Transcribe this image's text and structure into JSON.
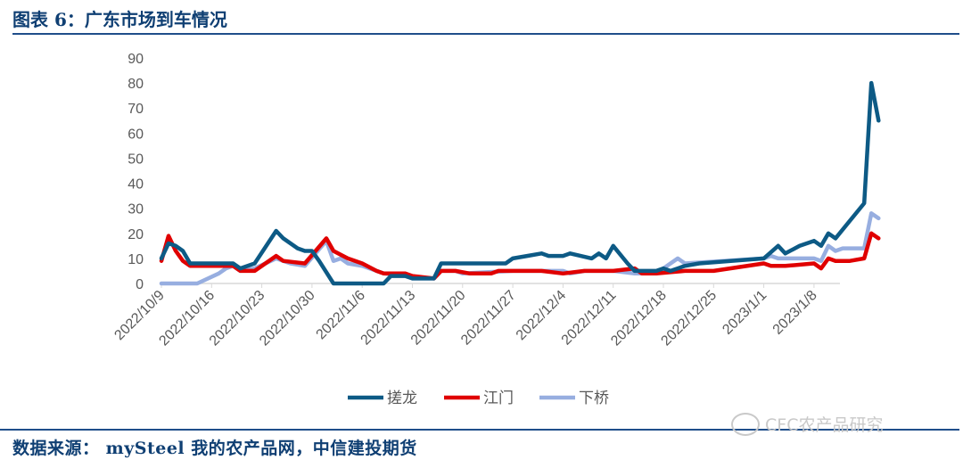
{
  "header": {
    "title": "图表 6：广东市场到车情况"
  },
  "footer": {
    "source": "数据来源：  mySteel 我的农产品网，中信建投期货",
    "watermark": "CFC农产品研究"
  },
  "colors": {
    "cuolong": "#0d5a85",
    "jiangmen": "#e00000",
    "xiaqiao": "#97aee0",
    "axis": "#d9d9d9",
    "text": "#595959"
  },
  "chart_data": {
    "type": "line",
    "title": "",
    "xlabel": "",
    "ylabel": "",
    "ylim": [
      0,
      90
    ],
    "yticks": [
      0,
      10,
      20,
      30,
      40,
      50,
      60,
      70,
      80,
      90
    ],
    "x_range": [
      "2022-10-09",
      "2023-01-12"
    ],
    "xticks": [
      "2022/10/9",
      "2022/10/16",
      "2022/10/23",
      "2022/10/30",
      "2022/11/6",
      "2022/11/13",
      "2022/11/20",
      "2022/11/27",
      "2022/12/4",
      "2022/12/11",
      "2022/12/18",
      "2022/12/25",
      "2023/1/1",
      "2023/1/8"
    ],
    "grid": false,
    "legend_position": "bottom",
    "series": [
      {
        "name": "搓龙",
        "color_key": "cuolong",
        "points": [
          [
            "2022-10-09",
            10
          ],
          [
            "2022-10-10",
            16
          ],
          [
            "2022-10-11",
            15
          ],
          [
            "2022-10-12",
            13
          ],
          [
            "2022-10-13",
            8
          ],
          [
            "2022-10-19",
            8
          ],
          [
            "2022-10-20",
            6
          ],
          [
            "2022-10-22",
            8
          ],
          [
            "2022-10-25",
            21
          ],
          [
            "2022-10-26",
            18
          ],
          [
            "2022-10-28",
            14
          ],
          [
            "2022-10-29",
            13
          ],
          [
            "2022-10-30",
            13
          ],
          [
            "2022-10-31",
            9
          ],
          [
            "2022-11-02",
            0
          ],
          [
            "2022-11-09",
            0
          ],
          [
            "2022-11-10",
            3
          ],
          [
            "2022-11-12",
            3
          ],
          [
            "2022-11-13",
            2
          ],
          [
            "2022-11-16",
            2
          ],
          [
            "2022-11-17",
            8
          ],
          [
            "2022-11-26",
            8
          ],
          [
            "2022-11-27",
            10
          ],
          [
            "2022-11-29",
            11
          ],
          [
            "2022-12-01",
            12
          ],
          [
            "2022-12-02",
            11
          ],
          [
            "2022-12-04",
            11
          ],
          [
            "2022-12-05",
            12
          ],
          [
            "2022-12-08",
            10
          ],
          [
            "2022-12-09",
            12
          ],
          [
            "2022-12-10",
            10
          ],
          [
            "2022-12-11",
            15
          ],
          [
            "2022-12-13",
            8
          ],
          [
            "2022-12-14",
            5
          ],
          [
            "2022-12-17",
            5
          ],
          [
            "2022-12-18",
            6
          ],
          [
            "2022-12-19",
            5
          ],
          [
            "2022-12-21",
            7
          ],
          [
            "2022-12-23",
            8
          ],
          [
            "2023-01-01",
            10
          ],
          [
            "2023-01-03",
            15
          ],
          [
            "2023-01-04",
            12
          ],
          [
            "2023-01-06",
            15
          ],
          [
            "2023-01-08",
            17
          ],
          [
            "2023-01-09",
            15
          ],
          [
            "2023-01-10",
            20
          ],
          [
            "2023-01-11",
            18
          ],
          [
            "2023-01-15",
            32
          ],
          [
            "2023-01-16",
            80
          ],
          [
            "2023-01-17",
            65
          ]
        ]
      },
      {
        "name": "江门",
        "color_key": "jiangmen",
        "points": [
          [
            "2022-10-09",
            9
          ],
          [
            "2022-10-10",
            19
          ],
          [
            "2022-10-11",
            13
          ],
          [
            "2022-10-12",
            9
          ],
          [
            "2022-10-13",
            7
          ],
          [
            "2022-10-19",
            7
          ],
          [
            "2022-10-20",
            5
          ],
          [
            "2022-10-22",
            5
          ],
          [
            "2022-10-25",
            11
          ],
          [
            "2022-10-26",
            9
          ],
          [
            "2022-10-29",
            8
          ],
          [
            "2022-11-01",
            18
          ],
          [
            "2022-11-02",
            13
          ],
          [
            "2022-11-04",
            10
          ],
          [
            "2022-11-06",
            8
          ],
          [
            "2022-11-08",
            5
          ],
          [
            "2022-11-09",
            4
          ],
          [
            "2022-11-12",
            4
          ],
          [
            "2022-11-13",
            3
          ],
          [
            "2022-11-16",
            2
          ],
          [
            "2022-11-17",
            5
          ],
          [
            "2022-11-19",
            5
          ],
          [
            "2022-11-21",
            4
          ],
          [
            "2022-11-24",
            4
          ],
          [
            "2022-11-25",
            5
          ],
          [
            "2022-12-01",
            5
          ],
          [
            "2022-12-04",
            4
          ],
          [
            "2022-12-07",
            5
          ],
          [
            "2022-12-11",
            5
          ],
          [
            "2022-12-14",
            6
          ],
          [
            "2022-12-15",
            4
          ],
          [
            "2022-12-17",
            4
          ],
          [
            "2022-12-21",
            5
          ],
          [
            "2022-12-25",
            5
          ],
          [
            "2023-01-01",
            8
          ],
          [
            "2023-01-02",
            7
          ],
          [
            "2023-01-03",
            7
          ],
          [
            "2023-01-04",
            7
          ],
          [
            "2023-01-08",
            8
          ],
          [
            "2023-01-09",
            6
          ],
          [
            "2023-01-10",
            10
          ],
          [
            "2023-01-11",
            9
          ],
          [
            "2023-01-13",
            9
          ],
          [
            "2023-01-15",
            10
          ],
          [
            "2023-01-16",
            20
          ],
          [
            "2023-01-17",
            18
          ]
        ]
      },
      {
        "name": "下桥",
        "color_key": "xiaqiao",
        "points": [
          [
            "2022-10-09",
            0
          ],
          [
            "2022-10-14",
            0
          ],
          [
            "2022-10-17",
            4
          ],
          [
            "2022-10-18",
            6
          ],
          [
            "2022-10-19",
            7
          ],
          [
            "2022-10-20",
            5
          ],
          [
            "2022-10-22",
            6
          ],
          [
            "2022-10-25",
            10
          ],
          [
            "2022-10-26",
            9
          ],
          [
            "2022-10-27",
            8
          ],
          [
            "2022-10-29",
            7
          ],
          [
            "2022-11-01",
            17
          ],
          [
            "2022-11-02",
            9
          ],
          [
            "2022-11-03",
            10
          ],
          [
            "2022-11-04",
            8
          ],
          [
            "2022-11-06",
            7
          ],
          [
            "2022-11-08",
            5
          ],
          [
            "2022-11-09",
            4
          ],
          [
            "2022-11-12",
            3
          ],
          [
            "2022-11-13",
            2
          ],
          [
            "2022-11-16",
            2
          ],
          [
            "2022-11-17",
            5
          ],
          [
            "2022-11-19",
            5
          ],
          [
            "2022-11-20",
            4
          ],
          [
            "2022-11-27",
            5
          ],
          [
            "2022-12-04",
            5
          ],
          [
            "2022-12-05",
            4
          ],
          [
            "2022-12-07",
            5
          ],
          [
            "2022-12-11",
            5
          ],
          [
            "2022-12-14",
            4
          ],
          [
            "2022-12-17",
            4
          ],
          [
            "2022-12-18",
            6
          ],
          [
            "2022-12-20",
            10
          ],
          [
            "2022-12-21",
            8
          ],
          [
            "2023-01-01",
            10
          ],
          [
            "2023-01-02",
            11
          ],
          [
            "2023-01-03",
            10
          ],
          [
            "2023-01-05",
            10
          ],
          [
            "2023-01-08",
            10
          ],
          [
            "2023-01-09",
            9
          ],
          [
            "2023-01-10",
            15
          ],
          [
            "2023-01-11",
            13
          ],
          [
            "2023-01-12",
            14
          ],
          [
            "2023-01-15",
            14
          ],
          [
            "2023-01-16",
            28
          ],
          [
            "2023-01-17",
            26
          ]
        ]
      }
    ]
  }
}
